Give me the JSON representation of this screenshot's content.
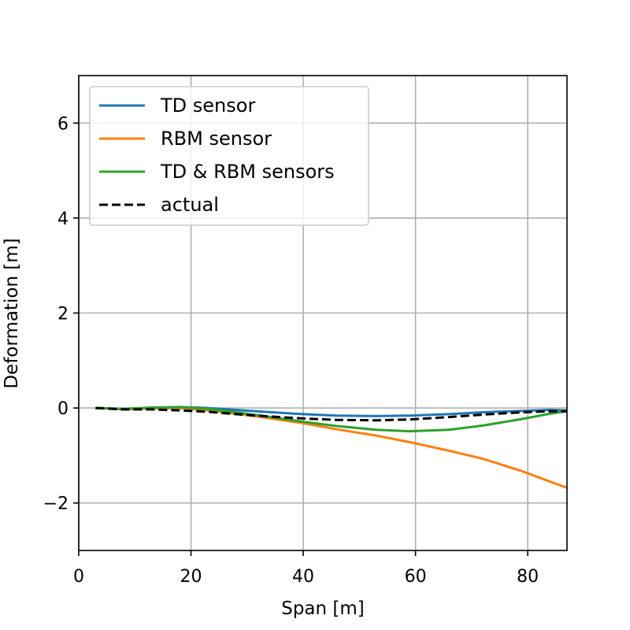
{
  "chart_data": {
    "type": "line",
    "title": "",
    "xlabel": "Span [m]",
    "ylabel": "Deformation [m]",
    "xlim": [
      0,
      87
    ],
    "ylim": [
      -3,
      7
    ],
    "xticks": [
      0,
      20,
      40,
      60,
      80
    ],
    "yticks": [
      -2,
      0,
      2,
      4,
      6
    ],
    "xtick_labels": [
      "0",
      "20",
      "40",
      "60",
      "80"
    ],
    "ytick_labels": [
      "−2",
      "0",
      "2",
      "4",
      "6"
    ],
    "grid": true,
    "legend_position": "top-left",
    "series": [
      {
        "name": "TD sensor",
        "color": "#1f77b4",
        "dash": "solid",
        "x": [
          3,
          8,
          13,
          18,
          23,
          28,
          33,
          40,
          46,
          53,
          59,
          66,
          72,
          79,
          84,
          87
        ],
        "y": [
          0.0,
          -0.02,
          0.0,
          0.02,
          0.0,
          -0.04,
          -0.08,
          -0.13,
          -0.16,
          -0.17,
          -0.16,
          -0.13,
          -0.09,
          -0.06,
          -0.04,
          -0.05
        ]
      },
      {
        "name": "RBM sensor",
        "color": "#ff7f0e",
        "dash": "solid",
        "x": [
          3,
          8,
          13,
          18,
          23,
          28,
          33,
          40,
          46,
          53,
          59,
          66,
          72,
          79,
          84,
          87
        ],
        "y": [
          0.0,
          -0.03,
          -0.01,
          0.0,
          -0.05,
          -0.12,
          -0.2,
          -0.32,
          -0.45,
          -0.58,
          -0.72,
          -0.9,
          -1.07,
          -1.33,
          -1.55,
          -1.68
        ]
      },
      {
        "name": "TD & RBM sensors",
        "color": "#2ca02c",
        "dash": "solid",
        "x": [
          3,
          8,
          13,
          18,
          23,
          28,
          33,
          40,
          46,
          53,
          59,
          66,
          72,
          79,
          84,
          87
        ],
        "y": [
          0.0,
          -0.02,
          0.01,
          0.02,
          -0.02,
          -0.09,
          -0.17,
          -0.29,
          -0.38,
          -0.46,
          -0.49,
          -0.46,
          -0.37,
          -0.23,
          -0.12,
          -0.07
        ]
      },
      {
        "name": "actual",
        "color": "#000000",
        "dash": "dashed",
        "x": [
          3,
          8,
          13,
          18,
          23,
          28,
          33,
          40,
          46,
          53,
          59,
          66,
          72,
          79,
          84,
          87
        ],
        "y": [
          0.0,
          -0.03,
          -0.03,
          -0.05,
          -0.08,
          -0.13,
          -0.17,
          -0.22,
          -0.25,
          -0.26,
          -0.24,
          -0.19,
          -0.14,
          -0.09,
          -0.07,
          -0.07
        ]
      }
    ]
  }
}
